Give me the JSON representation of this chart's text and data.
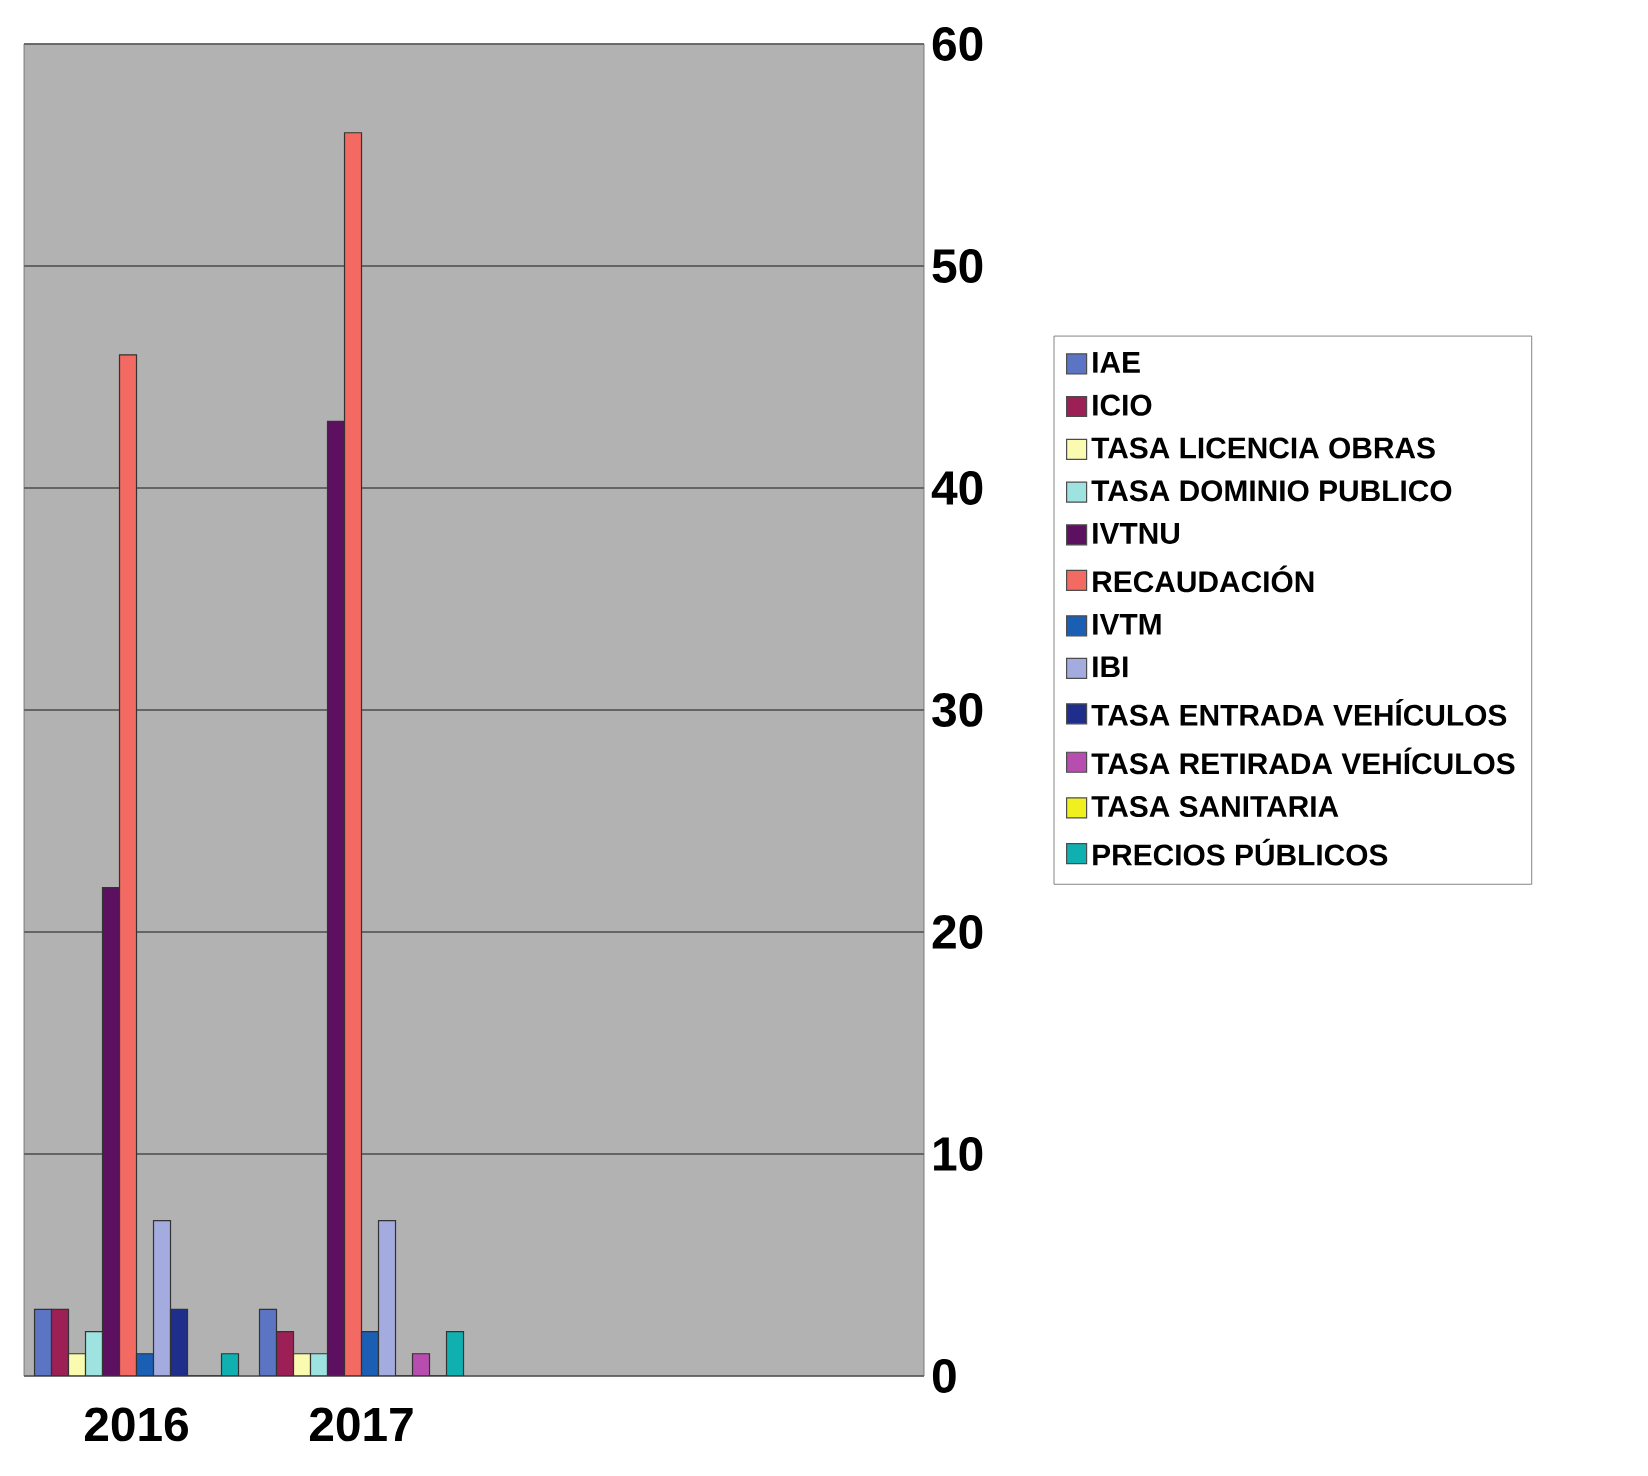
{
  "chart_data": {
    "type": "bar",
    "categories": [
      "2016",
      "2017",
      null,
      null
    ],
    "series": [
      {
        "name": "IAE",
        "color": "#5b74c4",
        "values": [
          3,
          3,
          null,
          null
        ]
      },
      {
        "name": "ICIO",
        "color": "#9c1f55",
        "values": [
          3,
          2,
          null,
          null
        ]
      },
      {
        "name": "TASA LICENCIA OBRAS",
        "color": "#fafab0",
        "values": [
          1,
          1,
          null,
          null
        ]
      },
      {
        "name": "TASA DOMINIO PUBLICO",
        "color": "#9ee3e0",
        "values": [
          2,
          1,
          null,
          null
        ]
      },
      {
        "name": "IVTNU",
        "color": "#5e1060",
        "values": [
          22,
          43,
          null,
          null
        ]
      },
      {
        "name": "RECAUDACIÓN",
        "color": "#f26a62",
        "values": [
          46,
          56,
          null,
          null
        ]
      },
      {
        "name": "IVTM",
        "color": "#1a5fb4",
        "values": [
          1,
          2,
          null,
          null
        ]
      },
      {
        "name": "IBI",
        "color": "#a4abde",
        "values": [
          7,
          7,
          null,
          null
        ]
      },
      {
        "name": "TASA ENTRADA VEHÍCULOS",
        "color": "#1f2e8a",
        "values": [
          3,
          0,
          null,
          null
        ]
      },
      {
        "name": "TASA RETIRADA VEHÍCULOS",
        "color": "#b84db0",
        "values": [
          0,
          1,
          null,
          null
        ]
      },
      {
        "name": "TASA SANITARIA",
        "color": "#f0f020",
        "values": [
          0,
          0,
          null,
          null
        ]
      },
      {
        "name": "PRECIOS PÚBLICOS",
        "color": "#10b0b0",
        "values": [
          1,
          2,
          null,
          null
        ]
      }
    ],
    "ylim": [
      0,
      60
    ],
    "yticks": [
      0,
      10,
      20,
      30,
      40,
      50,
      60
    ],
    "grid": "y",
    "legend": "right"
  }
}
